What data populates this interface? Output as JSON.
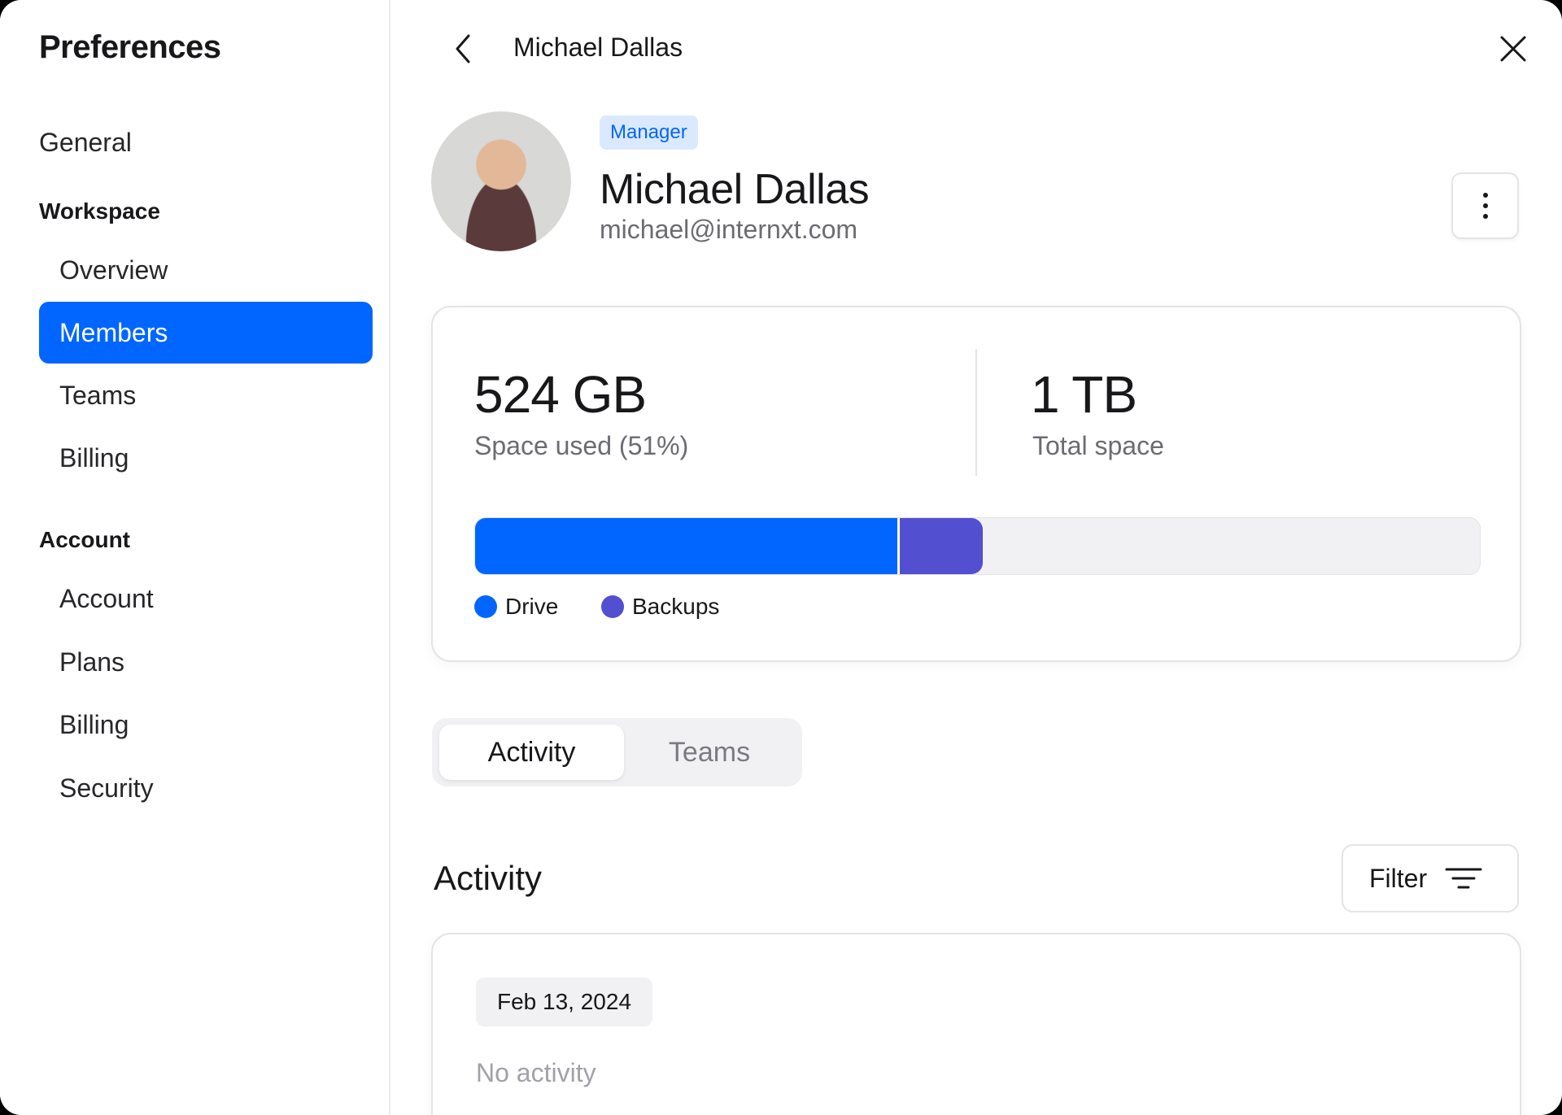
{
  "sidebar": {
    "title": "Preferences",
    "general": "General",
    "workspace_header": "Workspace",
    "workspace_items": [
      "Overview",
      "Members",
      "Teams",
      "Billing"
    ],
    "account_header": "Account",
    "account_items": [
      "Account",
      "Plans",
      "Billing",
      "Security"
    ],
    "active_item": "Members"
  },
  "header": {
    "title": "Michael Dallas",
    "back_icon": "chevron-left-icon",
    "close_icon": "close-icon"
  },
  "profile": {
    "role_badge": "Manager",
    "name": "Michael Dallas",
    "email": "michael@internxt.com",
    "more_icon": "more-vertical-icon"
  },
  "storage": {
    "used_value": "524 GB",
    "used_label": "Space used (51%)",
    "total_value": "1 TB",
    "total_label": "Total space",
    "segments": [
      {
        "name": "Drive",
        "percent": 42,
        "color": "#0066ff"
      },
      {
        "name": "Backups",
        "percent": 8.5,
        "color": "#524fd1"
      }
    ]
  },
  "tabs": {
    "items": [
      "Activity",
      "Teams"
    ],
    "active": "Activity"
  },
  "activity": {
    "heading": "Activity",
    "filter_label": "Filter",
    "filter_icon": "filter-lines-icon",
    "date": "Feb 13, 2024",
    "empty_text": "No activity"
  },
  "colors": {
    "accent": "#0066ff",
    "backups": "#524fd1"
  }
}
